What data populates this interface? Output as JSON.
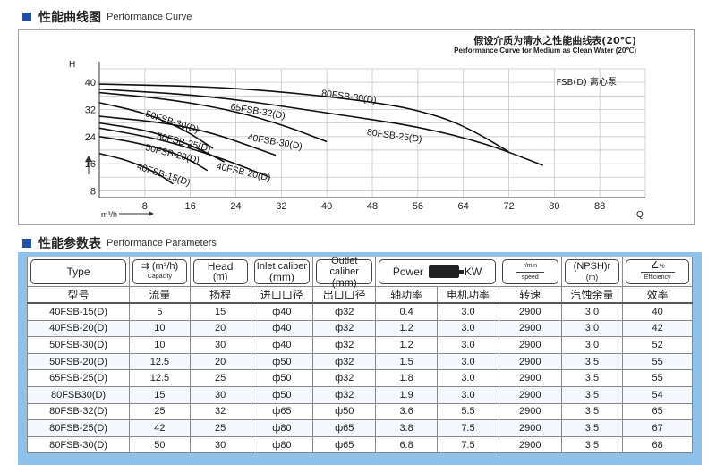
{
  "curve_section": {
    "title_zh": "性能曲线图",
    "title_en": "Performance Curve"
  },
  "param_section": {
    "title_zh": "性能参数表",
    "title_en": "Performance Parameters"
  },
  "chart_data": {
    "type": "line",
    "note_zh": "假设介质为清水之性能曲线表(20℃)",
    "note_en": "Performance Curve for Medium as Clean Water (20℃)",
    "legend_label": "FSB(D) 离心泵",
    "ylabel": "H",
    "xlabel_unit": "m³/h",
    "xlabel_end": "Q",
    "xlim": [
      0,
      96
    ],
    "ylim": [
      6,
      44
    ],
    "x_ticks": [
      8,
      16,
      24,
      32,
      40,
      48,
      56,
      64,
      72,
      80,
      88
    ],
    "y_ticks": [
      8,
      16,
      24,
      32,
      40
    ],
    "series": [
      {
        "name": "40FSB-15(D)",
        "x": [
          0,
          5,
          10,
          13
        ],
        "y": [
          19.0,
          17.0,
          13.4,
          10.0
        ],
        "label_x": 6.5,
        "label_y": 14.5
      },
      {
        "name": "50FSB-20(D)",
        "x": [
          0,
          6,
          12.5,
          16,
          19
        ],
        "y": [
          24.0,
          22.4,
          19.6,
          17.0,
          14.0
        ],
        "label_x": 8,
        "label_y": 20
      },
      {
        "name": "50FSB-25(D)",
        "x": [
          0,
          8,
          14,
          18,
          22
        ],
        "y": [
          28.0,
          26.0,
          22.8,
          20.0,
          16.5
        ],
        "label_x": 10,
        "label_y": 23.4
      },
      {
        "name": "50FSB-30(D)",
        "x": [
          0,
          6,
          10,
          15,
          20
        ],
        "y": [
          34.0,
          31.8,
          29.6,
          26.0,
          20.5
        ],
        "label_x": 8,
        "label_y": 30
      },
      {
        "name": "40FSB-30(D)",
        "x": [
          0,
          12,
          20,
          26,
          31
        ],
        "y": [
          30.0,
          28.0,
          25.0,
          21.5,
          18.5
        ],
        "label_x": 26,
        "label_y": 23
      },
      {
        "name": "40FSB-20(D)",
        "x": [
          0,
          10,
          18,
          24,
          30
        ],
        "y": [
          26.5,
          23.5,
          19.5,
          16.0,
          12.0
        ],
        "label_x": 20.5,
        "label_y": 14.5
      },
      {
        "name": "65FSB-32(D)",
        "x": [
          0,
          12.5,
          24,
          33,
          40
        ],
        "y": [
          37.0,
          35.0,
          31.5,
          27.0,
          22.5
        ],
        "label_x": 23,
        "label_y": 32
      },
      {
        "name": "80FSB-25(D)",
        "x": [
          0,
          20,
          42,
          56,
          68,
          78
        ],
        "y": [
          38.0,
          36.0,
          30.5,
          27.0,
          22.0,
          15.5
        ],
        "label_x": 47,
        "label_y": 24.5
      },
      {
        "name": "80FSB-30(D)",
        "x": [
          0,
          25,
          50,
          60,
          66,
          72
        ],
        "y": [
          39.5,
          38.5,
          34.0,
          30.0,
          25.5,
          19.5
        ],
        "label_x": 39,
        "label_y": 36
      }
    ]
  },
  "table": {
    "headers": [
      {
        "en": "Type",
        "zh": "型号"
      },
      {
        "en_main": "(m³/h)",
        "en_sub": "Capacity",
        "zh": "流量"
      },
      {
        "en": "Head",
        "en2": "(m)",
        "zh": "扬程"
      },
      {
        "en": "Inlet caliber",
        "en2": "(mm)",
        "zh": "进口口径"
      },
      {
        "en": "Outlet caliber",
        "en2": "(mm)",
        "zh": "出口口径"
      },
      {
        "en": "Power",
        "en_unit": "KW",
        "zh": "轴功率"
      },
      {
        "zh": "电机功率"
      },
      {
        "en_top": "r/min",
        "en_bottom": "speed",
        "zh": "转速"
      },
      {
        "en": "(NPSH)r",
        "en2": "(m)",
        "zh": "汽蚀余量"
      },
      {
        "en_sub": "%",
        "en_bottom": "Efficiency",
        "zh": "效率"
      }
    ],
    "rows": [
      [
        "40FSB-15(D)",
        "5",
        "15",
        "ф40",
        "ф32",
        "0.4",
        "3.0",
        "2900",
        "3.0",
        "40"
      ],
      [
        "40FSB-20(D)",
        "10",
        "20",
        "ф40",
        "ф32",
        "1.2",
        "3.0",
        "2900",
        "3.0",
        "42"
      ],
      [
        "50FSB-30(D)",
        "10",
        "30",
        "ф40",
        "ф32",
        "1.2",
        "3.0",
        "2900",
        "3.0",
        "52"
      ],
      [
        "50FSB-20(D)",
        "12.5",
        "20",
        "ф50",
        "ф32",
        "1.5",
        "3.0",
        "2900",
        "3.5",
        "55"
      ],
      [
        "65FSB-25(D)",
        "12.5",
        "25",
        "ф50",
        "ф32",
        "1.8",
        "3.0",
        "2900",
        "3.5",
        "55"
      ],
      [
        "80FSB30(D)",
        "15",
        "30",
        "ф50",
        "ф32",
        "1.9",
        "3.0",
        "2900",
        "3.5",
        "54"
      ],
      [
        "80FSB-32(D)",
        "25",
        "32",
        "ф65",
        "ф50",
        "3.6",
        "5.5",
        "2900",
        "3.5",
        "65"
      ],
      [
        "80FSB-25(D)",
        "42",
        "25",
        "ф80",
        "ф65",
        "3.8",
        "7.5",
        "2900",
        "3.5",
        "67"
      ],
      [
        "80FSB-30(D)",
        "50",
        "30",
        "ф80",
        "ф65",
        "6.8",
        "7.5",
        "2900",
        "3.5",
        "68"
      ]
    ]
  }
}
